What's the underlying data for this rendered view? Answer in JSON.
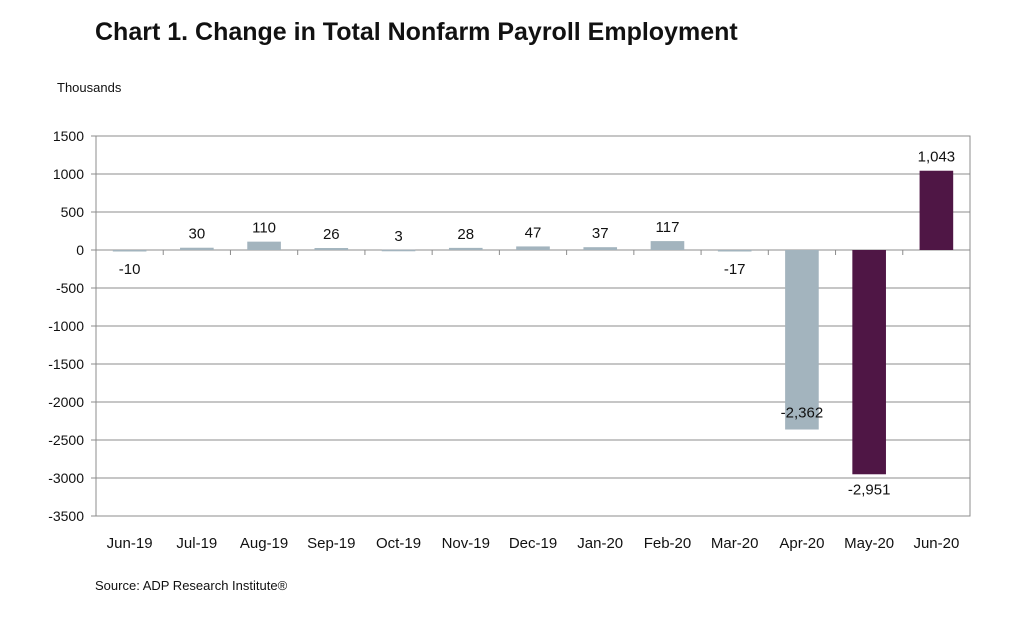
{
  "title": "Chart 1. Change in Total Nonfarm Payroll Employment",
  "source": "Source: ADP Research Institute®",
  "chart_data": {
    "type": "bar",
    "title": "Chart 1. Change in Total Nonfarm Payroll Employment",
    "ylabel": "Thousands",
    "xlabel": "",
    "ylim": [
      -3500,
      1500
    ],
    "yticks": [
      1500,
      1000,
      500,
      0,
      -500,
      -1000,
      -1500,
      -2000,
      -2500,
      -3000,
      -3500
    ],
    "grid": true,
    "categories": [
      "Jun-19",
      "Jul-19",
      "Aug-19",
      "Sep-19",
      "Oct-19",
      "Nov-19",
      "Dec-19",
      "Jan-20",
      "Feb-20",
      "Mar-20",
      "Apr-20",
      "May-20",
      "Jun-20"
    ],
    "values": [
      -10,
      30,
      110,
      26,
      3,
      28,
      47,
      37,
      117,
      -17,
      -2362,
      -2951,
      1043
    ],
    "data_labels": [
      "-10",
      "30",
      "110",
      "26",
      "3",
      "28",
      "47",
      "37",
      "117",
      "-17",
      "-2,362",
      "-2,951",
      "1,043"
    ],
    "bar_colors": [
      "#a3b4be",
      "#a3b4be",
      "#a3b4be",
      "#a3b4be",
      "#a3b4be",
      "#a3b4be",
      "#a3b4be",
      "#a3b4be",
      "#a3b4be",
      "#a3b4be",
      "#a3b4be",
      "#4f1645",
      "#4f1645"
    ]
  }
}
